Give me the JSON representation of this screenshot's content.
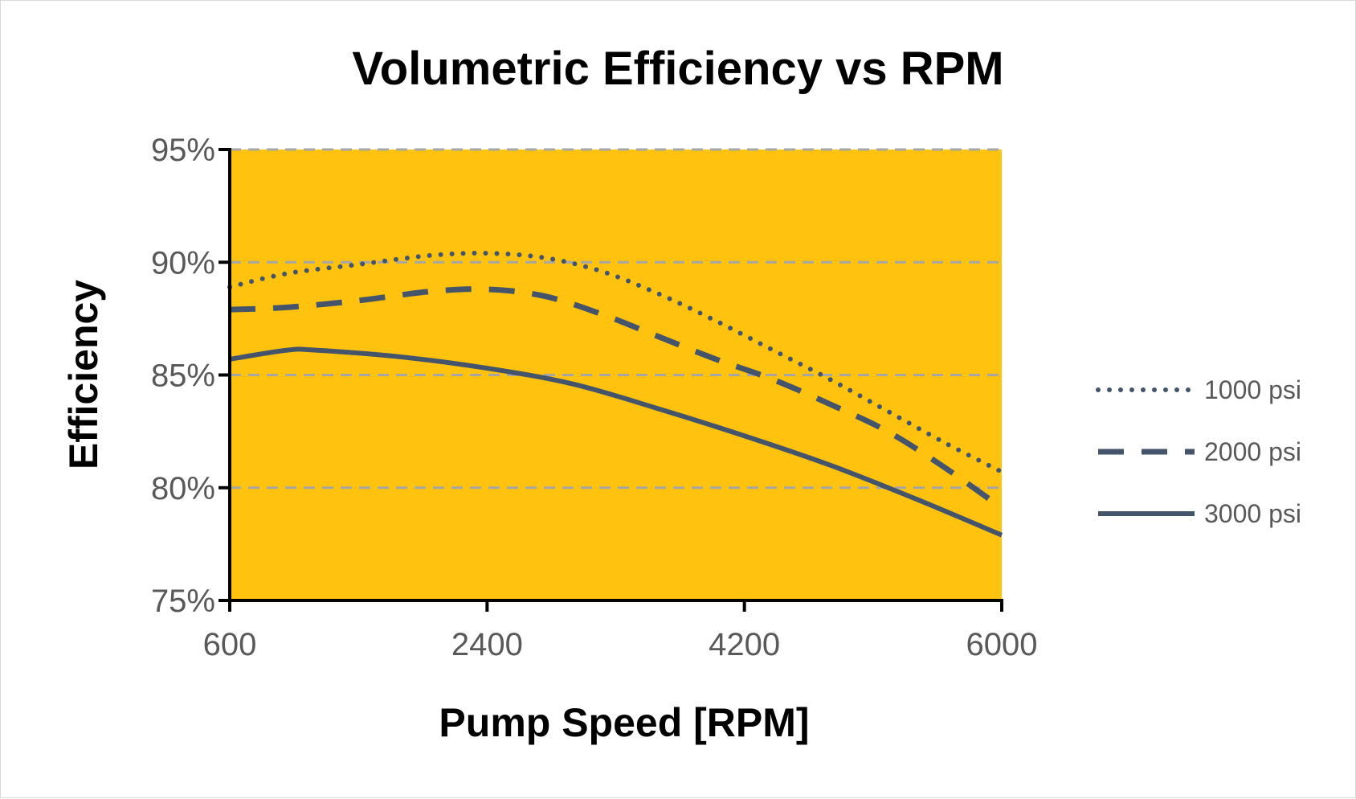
{
  "chart_data": {
    "type": "line",
    "title": "Volumetric Efficiency vs RPM",
    "xlabel": "Pump Speed [RPM]",
    "ylabel": "Efficiency",
    "xlim": [
      600,
      6000
    ],
    "ylim": [
      75,
      95
    ],
    "xticks": [
      600,
      2400,
      4200,
      6000
    ],
    "xtick_labels": [
      "600",
      "2400",
      "4200",
      "6000"
    ],
    "yticks": [
      75,
      80,
      85,
      90,
      95
    ],
    "ytick_labels": [
      "75%",
      "80%",
      "85%",
      "90%",
      "95%"
    ],
    "grid": "horizontal dashed",
    "plot_background": "#FFC20E",
    "legend_position": "right",
    "series": [
      {
        "name": "1000 psi",
        "style": "dotted",
        "color": "#44546A",
        "x": [
          600,
          1000,
          1500,
          2000,
          2400,
          2800,
          3200,
          3600,
          4000,
          4400,
          4800,
          5200,
          5600,
          6000
        ],
        "y": [
          88.9,
          89.5,
          89.9,
          90.3,
          90.4,
          90.2,
          89.6,
          88.6,
          87.4,
          86.1,
          84.8,
          83.4,
          82.0,
          80.7
        ]
      },
      {
        "name": "2000 psi",
        "style": "dashed",
        "color": "#44546A",
        "x": [
          600,
          1000,
          1500,
          2000,
          2400,
          2800,
          3200,
          3600,
          4000,
          4400,
          4800,
          5200,
          5600,
          6000
        ],
        "y": [
          87.9,
          88.0,
          88.3,
          88.7,
          88.8,
          88.5,
          87.7,
          86.7,
          85.7,
          84.8,
          83.7,
          82.5,
          80.9,
          79.1
        ]
      },
      {
        "name": "3000 psi",
        "style": "solid",
        "color": "#44546A",
        "x": [
          600,
          1000,
          1200,
          1800,
          2400,
          3000,
          3600,
          4200,
          4800,
          5400,
          6000
        ],
        "y": [
          85.7,
          86.1,
          86.1,
          85.8,
          85.3,
          84.6,
          83.5,
          82.3,
          81.0,
          79.5,
          77.9
        ]
      }
    ]
  }
}
